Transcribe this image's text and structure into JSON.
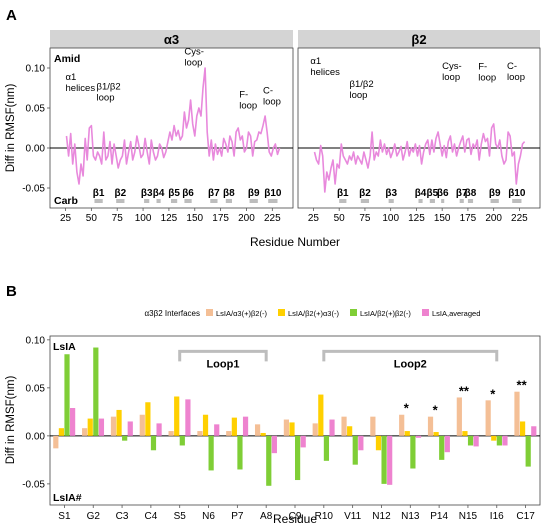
{
  "panel_a": {
    "panel_letter": "A",
    "facets": [
      {
        "title": "α3"
      },
      {
        "title": "β2"
      }
    ],
    "ylabel": "Diff in RMSF(nm)",
    "xlabel": "Residue Number",
    "top_corner_label": "Amid",
    "bottom_corner_label": "Carb",
    "y_ticks": [
      "0.10",
      "0.05",
      "0.00",
      "-0.05"
    ],
    "x_ticks": [
      "25",
      "50",
      "75",
      "100",
      "125",
      "150",
      "175",
      "200",
      "225"
    ],
    "annotations_a3": [
      {
        "lines": [
          "α1",
          "helices"
        ],
        "x": 25,
        "y": 0.085
      },
      {
        "lines": [
          "β1/β2",
          "loop"
        ],
        "x": 55,
        "y": 0.073
      },
      {
        "lines": [
          "Cys-",
          "loop"
        ],
        "x": 140,
        "y": 0.117
      },
      {
        "lines": [
          "F-",
          "loop"
        ],
        "x": 193,
        "y": 0.063
      },
      {
        "lines": [
          "C-",
          "loop"
        ],
        "x": 216,
        "y": 0.068
      }
    ],
    "annotations_b2": [
      {
        "lines": [
          "α1",
          "helices"
        ],
        "x": 22,
        "y": 0.105
      },
      {
        "lines": [
          "β1/β2",
          "loop"
        ],
        "x": 60,
        "y": 0.076
      },
      {
        "lines": [
          "Cys-",
          "loop"
        ],
        "x": 150,
        "y": 0.099
      },
      {
        "lines": [
          "F-",
          "loop"
        ],
        "x": 185,
        "y": 0.098
      },
      {
        "lines": [
          "C-",
          "loop"
        ],
        "x": 213,
        "y": 0.099
      }
    ],
    "strands_a3": [
      {
        "label": "β1",
        "start": 53,
        "end": 61
      },
      {
        "label": "β2",
        "start": 74,
        "end": 82
      },
      {
        "label": "β3",
        "start": 101,
        "end": 106
      },
      {
        "label": "β4",
        "start": 113,
        "end": 117
      },
      {
        "label": "β5",
        "start": 127,
        "end": 133
      },
      {
        "label": "β6",
        "start": 140,
        "end": 147
      },
      {
        "label": "β7",
        "start": 165,
        "end": 172
      },
      {
        "label": "β8",
        "start": 180,
        "end": 186
      },
      {
        "label": "β9",
        "start": 203,
        "end": 211
      },
      {
        "label": "β10",
        "start": 221,
        "end": 230
      }
    ],
    "strands_b2": [
      {
        "label": "β1",
        "start": 50,
        "end": 57
      },
      {
        "label": "β2",
        "start": 71,
        "end": 79
      },
      {
        "label": "β3",
        "start": 98,
        "end": 103
      },
      {
        "label": "β4",
        "start": 127,
        "end": 131
      },
      {
        "label": "β5",
        "start": 138,
        "end": 143
      },
      {
        "label": "β6",
        "start": 149,
        "end": 152
      },
      {
        "label": "β7",
        "start": 167,
        "end": 171
      },
      {
        "label": "β8",
        "start": 175,
        "end": 180
      },
      {
        "label": "β9",
        "start": 197,
        "end": 205
      },
      {
        "label": "β10",
        "start": 218,
        "end": 227
      }
    ],
    "line_color": "#e889dc"
  },
  "chart_data": [
    {
      "type": "line",
      "panel": "A",
      "facet": "α3",
      "xlabel": "Residue Number",
      "ylabel": "Diff in RMSF(nm)",
      "xlim": [
        10,
        245
      ],
      "ylim": [
        -0.075,
        0.125
      ],
      "x": [
        26,
        28,
        30,
        32,
        34,
        36,
        38,
        40,
        42,
        44,
        46,
        48,
        50,
        52,
        54,
        56,
        58,
        60,
        62,
        64,
        66,
        68,
        70,
        72,
        74,
        76,
        78,
        80,
        82,
        84,
        86,
        88,
        90,
        92,
        94,
        96,
        98,
        100,
        102,
        104,
        106,
        108,
        110,
        112,
        114,
        116,
        118,
        120,
        122,
        124,
        126,
        128,
        130,
        132,
        134,
        136,
        138,
        140,
        142,
        144,
        146,
        148,
        150,
        152,
        154,
        156,
        158,
        160,
        162,
        164,
        166,
        168,
        170,
        172,
        174,
        176,
        178,
        180,
        182,
        184,
        186,
        188,
        190,
        192,
        194,
        196,
        198,
        200,
        202,
        204,
        206,
        208,
        210,
        212,
        214,
        216,
        218,
        220,
        222,
        224,
        226,
        228,
        230,
        232
      ],
      "y": [
        0.015,
        -0.01,
        0.018,
        -0.02,
        0.005,
        -0.03,
        -0.045,
        -0.02,
        -0.035,
        0.012,
        -0.015,
        0.025,
        0.028,
        -0.01,
        -0.015,
        -0.005,
        -0.01,
        -0.02,
        0.02,
        -0.015,
        -0.01,
        0.008,
        -0.02,
        0.005,
        -0.01,
        -0.025,
        -0.015,
        -0.01,
        0.01,
        -0.02,
        -0.005,
        0.008,
        -0.015,
        -0.005,
        0.015,
        0.003,
        -0.012,
        -0.008,
        0.012,
        -0.005,
        -0.02,
        0.01,
        -0.005,
        -0.015,
        -0.01,
        0.005,
        0.0,
        -0.012,
        -0.005,
        0.008,
        0.02,
        0.01,
        0.028,
        0.015,
        0.022,
        0.01,
        0.015,
        0.045,
        0.025,
        0.035,
        0.06,
        0.03,
        0.015,
        0.04,
        0.05,
        0.04,
        0.075,
        0.1,
        0.02,
        -0.01,
        0.01,
        -0.015,
        0.005,
        -0.008,
        0.0,
        -0.01,
        0.012,
        0.005,
        -0.005,
        0.015,
        0.008,
        -0.01,
        0.02,
        0.025,
        0.01,
        0.015,
        -0.005,
        0.0,
        0.02,
        0.015,
        -0.01,
        0.008,
        0.01,
        0.02,
        0.018,
        0.028,
        0.04,
        0.02,
        -0.005,
        -0.01,
        0.0,
        0.005,
        -0.008,
        0.0
      ]
    },
    {
      "type": "line",
      "panel": "A",
      "facet": "β2",
      "xlabel": "Residue Number",
      "ylabel": "Diff in RMSF(nm)",
      "xlim": [
        10,
        245
      ],
      "ylim": [
        -0.075,
        0.125
      ],
      "x": [
        26,
        28,
        30,
        32,
        34,
        36,
        38,
        40,
        42,
        44,
        46,
        48,
        50,
        52,
        54,
        56,
        58,
        60,
        62,
        64,
        66,
        68,
        70,
        72,
        74,
        76,
        78,
        80,
        82,
        84,
        86,
        88,
        90,
        92,
        94,
        96,
        98,
        100,
        102,
        104,
        106,
        108,
        110,
        112,
        114,
        116,
        118,
        120,
        122,
        124,
        126,
        128,
        130,
        132,
        134,
        136,
        138,
        140,
        142,
        144,
        146,
        148,
        150,
        152,
        154,
        156,
        158,
        160,
        162,
        164,
        166,
        168,
        170,
        172,
        174,
        176,
        178,
        180,
        182,
        184,
        186,
        188,
        190,
        192,
        194,
        196,
        198,
        200,
        202,
        204,
        206,
        208,
        210,
        212,
        214,
        216,
        218,
        220,
        222,
        224,
        226,
        228,
        230
      ],
      "y": [
        -0.005,
        -0.015,
        -0.02,
        0.003,
        -0.01,
        -0.055,
        -0.03,
        -0.04,
        -0.025,
        -0.015,
        -0.045,
        -0.02,
        -0.025,
        0.005,
        -0.01,
        -0.015,
        -0.02,
        -0.01,
        -0.015,
        -0.005,
        -0.02,
        -0.01,
        -0.015,
        -0.02,
        -0.005,
        -0.015,
        -0.025,
        -0.01,
        0.02,
        -0.015,
        -0.005,
        -0.01,
        0.01,
        -0.005,
        0.005,
        -0.008,
        0.0,
        -0.012,
        -0.005,
        0.005,
        -0.01,
        -0.005,
        0.002,
        -0.015,
        -0.005,
        0.008,
        -0.01,
        0.0,
        -0.005,
        0.005,
        -0.01,
        0.003,
        -0.02,
        -0.005,
        0.005,
        0.01,
        -0.008,
        0.01,
        -0.005,
        0.012,
        0.02,
        0.005,
        -0.01,
        0.003,
        -0.012,
        0.008,
        0.015,
        -0.005,
        0.005,
        -0.01,
        0.0,
        0.008,
        0.015,
        -0.005,
        0.01,
        0.012,
        -0.008,
        0.005,
        0.0,
        0.01,
        -0.015,
        0.005,
        0.018,
        0.008,
        0.012,
        -0.01,
        0.025,
        0.03,
        0.005,
        0.0,
        0.01,
        -0.01,
        -0.02,
        -0.015,
        0.02,
        0.015,
        -0.01,
        -0.005,
        -0.045,
        -0.02,
        -0.01,
        0.005,
        0.008
      ]
    },
    {
      "type": "bar",
      "panel": "B",
      "title": "α3β2 Interfaces",
      "xlabel": "Residue",
      "ylabel": "Diff in RMSF(nm)",
      "ylim": [
        -0.072,
        0.104
      ],
      "y_ticks": [
        "0.10",
        "0.05",
        "0.00",
        "-0.05"
      ],
      "top_corner_label": "LsIA",
      "bottom_corner_label": "LsIA#",
      "categories": [
        "S1",
        "G2",
        "C3",
        "C4",
        "S5",
        "N6",
        "P7",
        "A8",
        "C9",
        "R10",
        "V11",
        "N12",
        "N13",
        "P14",
        "N15",
        "I16",
        "C17"
      ],
      "series": [
        {
          "name": "LsIA/α3(+)β2(-)",
          "color": "#f4bf96",
          "values": [
            -0.013,
            0.008,
            0.02,
            0.022,
            0.005,
            0.005,
            0.005,
            0.012,
            0.017,
            0.013,
            0.02,
            0.02,
            0.022,
            0.02,
            0.04,
            0.037,
            0.046
          ]
        },
        {
          "name": "LsIA/β2(+)α3(-)",
          "color": "#ffd000",
          "values": [
            0.008,
            0.018,
            0.027,
            0.035,
            0.041,
            0.022,
            0.019,
            0.003,
            0.014,
            0.043,
            0.01,
            -0.015,
            0.005,
            0.004,
            0.005,
            -0.005,
            0.015
          ]
        },
        {
          "name": "LsIA/β2(+)β2(-)",
          "color": "#7fce36",
          "values": [
            0.085,
            0.092,
            -0.005,
            -0.015,
            -0.01,
            -0.036,
            -0.035,
            -0.052,
            -0.046,
            -0.026,
            -0.03,
            -0.05,
            -0.034,
            -0.025,
            -0.01,
            -0.01,
            -0.032
          ]
        },
        {
          "name": "LsIA,averaged",
          "color": "#ee83cf",
          "values": [
            0.029,
            0.018,
            0.015,
            0.013,
            0.038,
            0.012,
            0.02,
            -0.018,
            -0.012,
            0.017,
            -0.015,
            -0.051,
            -0.002,
            -0.017,
            -0.011,
            -0.01,
            0.01
          ]
        }
      ],
      "significance": [
        {
          "category": "N13",
          "mark": "*"
        },
        {
          "category": "P14",
          "mark": "*"
        },
        {
          "category": "N15",
          "mark": "**"
        },
        {
          "category": "I16",
          "mark": "*"
        },
        {
          "category": "C17",
          "mark": "**"
        }
      ],
      "brackets": [
        {
          "label": "Loop1",
          "from": "S5",
          "to": "A8"
        },
        {
          "label": "Loop2",
          "from": "R10",
          "to": "I16"
        }
      ]
    }
  ],
  "panel_b": {
    "panel_letter": "B"
  }
}
